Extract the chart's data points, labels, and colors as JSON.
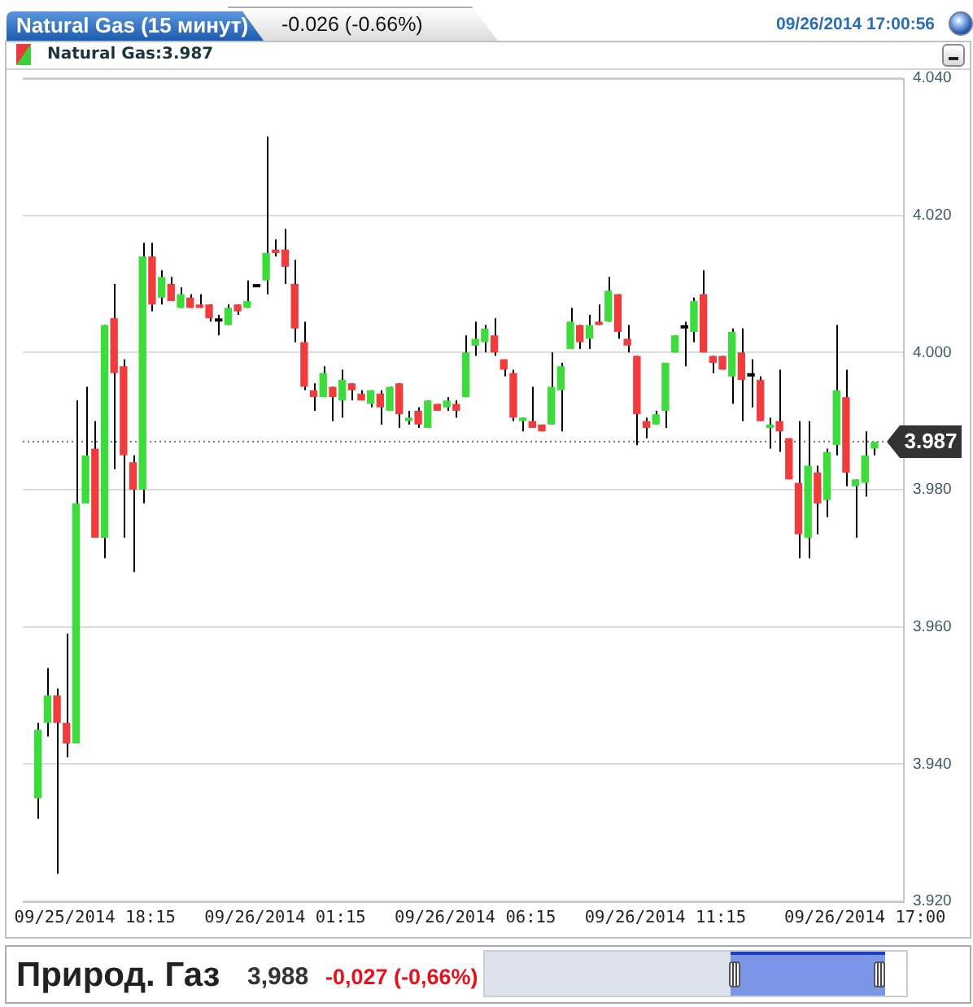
{
  "chart_data": {
    "type": "candlestick",
    "title": "Natural Gas (15 минут)",
    "subtitle": "Natural Gas:3.987",
    "annotations": [
      "-0.026 (-0.66%)",
      "09/26/2014 17:00:56",
      "Природ. Газ",
      "3,988",
      "-0,027 (-0,66%)"
    ],
    "categories": [
      null,
      null,
      null,
      null,
      null,
      null,
      "09/25/2014 18:15",
      null,
      null,
      null,
      null,
      null,
      null,
      null,
      null,
      null,
      null,
      null,
      null,
      null,
      null,
      null,
      null,
      null,
      null,
      null,
      "09/26/2014 01:15",
      null,
      null,
      null,
      null,
      null,
      null,
      null,
      null,
      null,
      null,
      null,
      null,
      null,
      null,
      null,
      null,
      null,
      null,
      null,
      "09/26/2014 06:15",
      null,
      null,
      null,
      null,
      null,
      null,
      null,
      null,
      null,
      null,
      null,
      null,
      null,
      null,
      null,
      null,
      null,
      null,
      null,
      "09/26/2014 11:15",
      null,
      null,
      null,
      null,
      null,
      null,
      null,
      null,
      null,
      null,
      null,
      null,
      null,
      null,
      null,
      null,
      null,
      null,
      null,
      null,
      "09/26/2014 17:00",
      null
    ],
    "ohlc": [
      [
        3.935,
        3.946,
        3.932,
        3.945
      ],
      [
        3.946,
        3.954,
        3.944,
        3.95
      ],
      [
        3.95,
        3.951,
        3.924,
        3.946
      ],
      [
        3.946,
        3.959,
        3.941,
        3.943
      ],
      [
        3.943,
        3.993,
        3.943,
        3.978
      ],
      [
        3.978,
        3.995,
        3.978,
        3.985
      ],
      [
        3.986,
        3.99,
        3.973,
        3.973
      ],
      [
        3.973,
        4.004,
        3.97,
        4.004
      ],
      [
        4.005,
        4.01,
        3.983,
        3.997
      ],
      [
        3.998,
        3.999,
        3.973,
        3.985
      ],
      [
        3.984,
        3.985,
        3.968,
        3.98
      ],
      [
        3.98,
        4.016,
        3.978,
        4.014
      ],
      [
        4.014,
        4.016,
        4.006,
        4.007
      ],
      [
        4.008,
        4.012,
        4.007,
        4.011
      ],
      [
        4.01,
        4.011,
        4.0075,
        4.0075
      ],
      [
        4.0065,
        4.0095,
        4.0065,
        4.0085
      ],
      [
        4.008,
        4.0085,
        4.0065,
        4.0065
      ],
      [
        4.007,
        4.0085,
        4.0065,
        4.0065
      ],
      [
        4.007,
        4.007,
        4.0045,
        4.005
      ],
      [
        4.0045,
        4.0055,
        4.0025,
        4.0045
      ],
      [
        4.004,
        4.007,
        4.004,
        4.0065
      ],
      [
        4.007,
        4.007,
        4.0055,
        4.006
      ],
      [
        4.0065,
        4.0105,
        4.0065,
        4.0075
      ],
      [
        4.0095,
        4.0095,
        4.0095,
        4.0095
      ],
      [
        4.0105,
        4.0315,
        4.0085,
        4.0145
      ],
      [
        4.015,
        4.0165,
        4.014,
        4.0145
      ],
      [
        4.015,
        4.018,
        4.01,
        4.0125
      ],
      [
        4.01,
        4.0135,
        4.0015,
        4.0035
      ],
      [
        4.0015,
        4.0045,
        3.9945,
        3.995
      ],
      [
        3.9945,
        3.9955,
        3.9915,
        3.9935
      ],
      [
        3.9935,
        3.998,
        3.9935,
        3.997
      ],
      [
        3.995,
        3.995,
        3.99,
        3.9935
      ],
      [
        3.993,
        3.9975,
        3.9905,
        3.996
      ],
      [
        3.9955,
        3.9955,
        3.993,
        3.9945
      ],
      [
        3.994,
        3.9945,
        3.993,
        3.993
      ],
      [
        3.9925,
        3.9945,
        3.992,
        3.9945
      ],
      [
        3.994,
        3.9945,
        3.9895,
        3.992
      ],
      [
        3.9915,
        3.995,
        3.9915,
        3.995
      ],
      [
        3.9955,
        3.9955,
        3.989,
        3.991
      ],
      [
        3.99,
        3.9915,
        3.9895,
        3.9905
      ],
      [
        3.9915,
        3.992,
        3.989,
        3.9895
      ],
      [
        3.989,
        3.993,
        3.989,
        3.993
      ],
      [
        3.9925,
        3.9925,
        3.9915,
        3.9915
      ],
      [
        3.992,
        3.9935,
        3.9915,
        3.993
      ],
      [
        3.9925,
        3.993,
        3.9905,
        3.9915
      ],
      [
        3.9935,
        4.0025,
        3.9935,
        4.0
      ],
      [
        4.001,
        4.0045,
        3.9995,
        4.002
      ],
      [
        4.0015,
        4.004,
        4.0,
        4.0035
      ],
      [
        4.0025,
        4.005,
        3.9995,
        4.0
      ],
      [
        3.999,
        3.999,
        3.9965,
        3.9975
      ],
      [
        3.997,
        3.9975,
        3.99,
        3.9905
      ],
      [
        3.99,
        3.9905,
        3.9885,
        3.9905
      ],
      [
        3.99,
        3.995,
        3.989,
        3.989
      ],
      [
        3.9895,
        3.9895,
        3.9885,
        3.9885
      ],
      [
        3.9895,
        4.0,
        3.9895,
        3.995
      ],
      [
        3.9945,
        3.9985,
        3.9885,
        3.998
      ],
      [
        4.0005,
        4.0065,
        4.0005,
        4.0045
      ],
      [
        4.004,
        4.004,
        4.0005,
        4.0015
      ],
      [
        4.002,
        4.0055,
        4.0005,
        4.004
      ],
      [
        4.0045,
        4.007,
        4.004,
        4.004
      ],
      [
        4.0045,
        4.011,
        4.0045,
        4.009
      ],
      [
        4.0085,
        4.0085,
        4.002,
        4.003
      ],
      [
        4.002,
        4.004,
        4.0,
        4.001
      ],
      [
        3.9995,
        3.9995,
        3.9865,
        3.991
      ],
      [
        3.99,
        3.9905,
        3.9875,
        3.989
      ],
      [
        3.9895,
        3.9915,
        3.9895,
        3.991
      ],
      [
        3.9915,
        3.9985,
        3.989,
        3.9985
      ],
      [
        4.0,
        4.0025,
        4.0,
        4.0025
      ],
      [
        4.0035,
        4.0045,
        3.998,
        4.0035
      ],
      [
        4.003,
        4.008,
        4.0015,
        4.0075
      ],
      [
        4.0085,
        4.012,
        4.0,
        4.0
      ],
      [
        3.9995,
        3.9995,
        3.997,
        3.9985
      ],
      [
        3.9995,
        3.9995,
        3.9975,
        3.9975
      ],
      [
        3.9965,
        4.0035,
        3.9925,
        4.003
      ],
      [
        4.0,
        4.0035,
        3.99,
        3.996
      ],
      [
        3.9965,
        3.999,
        3.992,
        3.9965
      ],
      [
        3.996,
        3.9965,
        3.99,
        3.99
      ],
      [
        3.989,
        3.9905,
        3.986,
        3.9895
      ],
      [
        3.99,
        3.9975,
        3.9855,
        3.9885
      ],
      [
        3.9875,
        3.9875,
        3.9815,
        3.9815
      ],
      [
        3.981,
        3.99,
        3.97,
        3.9735
      ],
      [
        3.973,
        3.99,
        3.97,
        3.9835
      ],
      [
        3.9825,
        3.9835,
        3.9735,
        3.978
      ],
      [
        3.9785,
        3.986,
        3.976,
        3.9855
      ],
      [
        3.9865,
        4.004,
        3.985,
        3.9945
      ],
      [
        3.9935,
        3.9975,
        3.9805,
        3.9825
      ],
      [
        3.9805,
        3.9815,
        3.973,
        3.9815
      ],
      [
        3.981,
        3.9885,
        3.979,
        3.985
      ],
      [
        3.986,
        3.987,
        3.985,
        3.987
      ]
    ],
    "colors": [
      "#3ddc3d",
      "#3ddc3d",
      "#f03c3c",
      "#f03c3c",
      "#3ddc3d",
      "#3ddc3d",
      "#f03c3c",
      "#3ddc3d",
      "#f03c3c",
      "#f03c3c",
      "#f03c3c",
      "#3ddc3d",
      "#f03c3c",
      "#3ddc3d",
      "#f03c3c",
      "#3ddc3d",
      "#f03c3c",
      "#f03c3c",
      "#f03c3c",
      "#000000",
      "#3ddc3d",
      "#f03c3c",
      "#3ddc3d",
      "#000000",
      "#3ddc3d",
      "#f03c3c",
      "#f03c3c",
      "#f03c3c",
      "#f03c3c",
      "#f03c3c",
      "#3ddc3d",
      "#f03c3c",
      "#3ddc3d",
      "#f03c3c",
      "#f03c3c",
      "#3ddc3d",
      "#f03c3c",
      "#3ddc3d",
      "#f03c3c",
      "#3ddc3d",
      "#f03c3c",
      "#3ddc3d",
      "#f03c3c",
      "#3ddc3d",
      "#f03c3c",
      "#3ddc3d",
      "#3ddc3d",
      "#3ddc3d",
      "#f03c3c",
      "#f03c3c",
      "#f03c3c",
      "#3ddc3d",
      "#f03c3c",
      "#f03c3c",
      "#3ddc3d",
      "#3ddc3d",
      "#3ddc3d",
      "#f03c3c",
      "#3ddc3d",
      "#f03c3c",
      "#3ddc3d",
      "#f03c3c",
      "#f03c3c",
      "#f03c3c",
      "#f03c3c",
      "#3ddc3d",
      "#3ddc3d",
      "#3ddc3d",
      "#000000",
      "#3ddc3d",
      "#f03c3c",
      "#f03c3c",
      "#f03c3c",
      "#3ddc3d",
      "#f03c3c",
      "#000000",
      "#f03c3c",
      "#3ddc3d",
      "#f03c3c",
      "#f03c3c",
      "#f03c3c",
      "#3ddc3d",
      "#f03c3c",
      "#3ddc3d",
      "#3ddc3d",
      "#f03c3c",
      "#3ddc3d",
      "#3ddc3d",
      "#3ddc3d"
    ],
    "ylim": [
      3.92,
      4.04
    ],
    "yticks": [
      {
        "value": 3.92,
        "label": "3.920"
      },
      {
        "value": 3.94,
        "label": "3.940"
      },
      {
        "value": 3.96,
        "label": "3.960"
      },
      {
        "value": 3.98,
        "label": "3.980"
      },
      {
        "value": 4.0,
        "label": "4.000"
      },
      {
        "value": 4.02,
        "label": "4.020"
      },
      {
        "value": 4.04,
        "label": "4.040"
      }
    ],
    "grid": "y",
    "ref_lines": [
      {
        "axis": "y",
        "value": 3.987,
        "label": "3.987",
        "color": "#777777",
        "line_style": "dotted"
      }
    ]
  }
}
